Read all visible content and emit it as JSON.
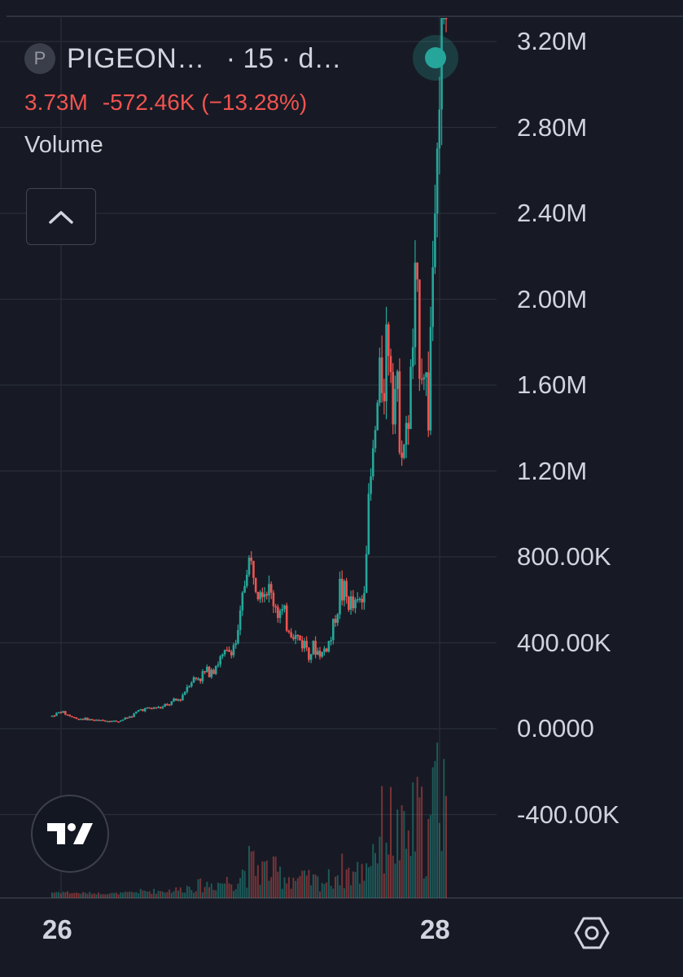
{
  "legend": {
    "badge": "P",
    "symbol": "PIGEON…",
    "interval": "· 15 · d…",
    "last_value": "3.73M",
    "change": "-572.46K (−13.28%)",
    "volume_label": "Volume"
  },
  "time_axis": {
    "labels": [
      "26",
      "28"
    ]
  },
  "colors": {
    "up": "#26a69a",
    "down": "#ef5350",
    "background": "#171a24",
    "grid": "#2a2e39"
  },
  "icons": {
    "collapse": "chevron-up-icon",
    "logo": "tradingview-logo-icon",
    "settings": "settings-icon"
  },
  "chart_data": {
    "type": "candlestick",
    "y_axis": {
      "tick_labels": [
        "3.20M",
        "2.80M",
        "2.40M",
        "2.00M",
        "1.60M",
        "1.20M",
        "800.00K",
        "400.00K",
        "0.0000",
        "-400.00K"
      ],
      "tick_values": [
        3200000,
        2800000,
        2400000,
        2000000,
        1600000,
        1200000,
        800000,
        400000,
        0,
        -400000
      ]
    },
    "x_axis": {
      "tick_labels": [
        "26",
        "28"
      ]
    },
    "grid": true,
    "series": [
      {
        "name": "price",
        "approx_close_path": [
          [
            0,
            60000
          ],
          [
            4,
            80000
          ],
          [
            10,
            50000
          ],
          [
            20,
            40000
          ],
          [
            30,
            35000
          ],
          [
            36,
            60000
          ],
          [
            40,
            90000
          ],
          [
            50,
            100000
          ],
          [
            58,
            140000
          ],
          [
            62,
            220000
          ],
          [
            68,
            250000
          ],
          [
            74,
            300000
          ],
          [
            80,
            360000
          ],
          [
            84,
            420000
          ],
          [
            88,
            780000
          ],
          [
            94,
            700000
          ],
          [
            100,
            600000
          ],
          [
            104,
            520000
          ],
          [
            110,
            430000
          ],
          [
            116,
            380000
          ],
          [
            122,
            350000
          ],
          [
            126,
            420000
          ],
          [
            130,
            650000
          ],
          [
            136,
            560000
          ],
          [
            140,
            600000
          ],
          [
            144,
            1150000
          ],
          [
            148,
            1600000
          ],
          [
            152,
            1850000
          ],
          [
            156,
            1500000
          ],
          [
            160,
            1300000
          ],
          [
            164,
            1950000
          ],
          [
            168,
            1700000
          ],
          [
            170,
            1500000
          ],
          [
            174,
            2900000
          ],
          [
            178,
            3300000
          ]
        ]
      },
      {
        "name": "volume"
      }
    ]
  }
}
